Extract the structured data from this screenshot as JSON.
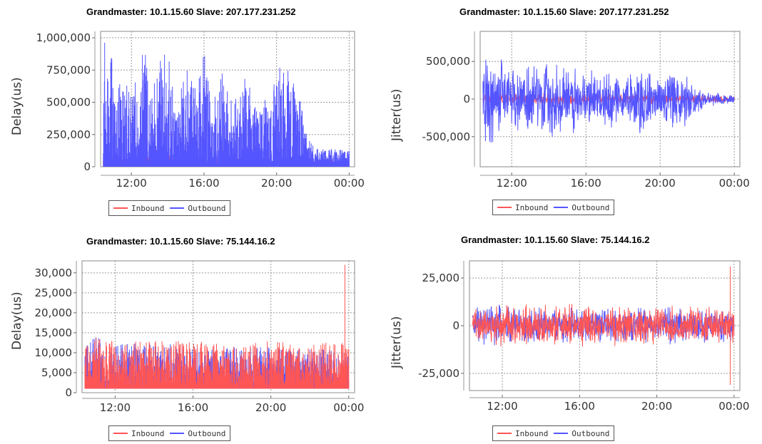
{
  "colors": {
    "inbound": "#ff5555",
    "outbound": "#5555ff",
    "grid": "#999999",
    "plot_border": "#888888"
  },
  "chart_data": [
    {
      "type": "line",
      "title": "Grandmaster: 10.1.15.60   Slave: 207.177.231.252",
      "ylabel": "Delay(us)",
      "xlabel": "",
      "x_ticks": [
        "12:00",
        "16:00",
        "20:00",
        "00:00"
      ],
      "x_tick_hours": [
        12,
        16,
        20,
        24
      ],
      "xlim_hours": [
        10.3,
        24.3
      ],
      "y_ticks": [
        0,
        250000,
        500000,
        750000,
        1000000
      ],
      "y_tick_labels": [
        "0",
        "250,000",
        "500,000",
        "750,000",
        "1,000,000"
      ],
      "ylim": [
        0,
        1050000
      ],
      "grid": true,
      "legend_position": "bottom",
      "series": [
        {
          "name": "Inbound",
          "color": "#ff5555",
          "envelope": [
            [
              10.4,
              40000
            ],
            [
              10.9,
              190000
            ],
            [
              11.0,
              40000
            ],
            [
              14.0,
              80000
            ],
            [
              16.0,
              60000
            ],
            [
              19.5,
              50000
            ],
            [
              20.0,
              30000
            ],
            [
              21.6,
              40000
            ],
            [
              24.0,
              40000
            ]
          ]
        },
        {
          "name": "Outbound",
          "color": "#5555ff",
          "envelope": [
            [
              10.4,
              900000
            ],
            [
              10.6,
              1000000
            ],
            [
              11.0,
              760000
            ],
            [
              11.5,
              700000
            ],
            [
              12.0,
              500000
            ],
            [
              12.7,
              920000
            ],
            [
              13.2,
              650000
            ],
            [
              13.8,
              920000
            ],
            [
              14.5,
              600000
            ],
            [
              15.0,
              750000
            ],
            [
              15.6,
              600000
            ],
            [
              16.1,
              1040000
            ],
            [
              16.5,
              500000
            ],
            [
              17.0,
              700000
            ],
            [
              17.6,
              460000
            ],
            [
              18.4,
              700000
            ],
            [
              19.0,
              380000
            ],
            [
              19.6,
              560000
            ],
            [
              20.0,
              700000
            ],
            [
              20.3,
              830000
            ],
            [
              20.7,
              690000
            ],
            [
              21.3,
              550000
            ],
            [
              21.7,
              180000
            ],
            [
              22.5,
              120000
            ],
            [
              23.3,
              110000
            ],
            [
              24.0,
              100000
            ]
          ]
        }
      ]
    },
    {
      "type": "line",
      "title": "Grandmaster: 10.1.15.60   Slave: 207.177.231.252",
      "ylabel": "Jitter(us)",
      "xlabel": "",
      "x_ticks": [
        "12:00",
        "16:00",
        "20:00",
        "00:00"
      ],
      "x_tick_hours": [
        12,
        16,
        20,
        24
      ],
      "xlim_hours": [
        10.3,
        24.3
      ],
      "y_ticks": [
        -500000,
        0,
        500000
      ],
      "y_tick_labels": [
        "-500,000",
        "0",
        "500,000"
      ],
      "ylim": [
        -900000,
        900000
      ],
      "grid": true,
      "legend_position": "bottom",
      "series": [
        {
          "name": "Inbound",
          "color": "#ff5555",
          "envelope": [
            [
              10.4,
              70000
            ],
            [
              14.0,
              90000
            ],
            [
              18.0,
              80000
            ],
            [
              22.0,
              60000
            ],
            [
              24.0,
              50000
            ]
          ]
        },
        {
          "name": "Outbound",
          "color": "#5555ff",
          "envelope": [
            [
              10.4,
              800000
            ],
            [
              10.8,
              700000
            ],
            [
              11.4,
              650000
            ],
            [
              12.0,
              400000
            ],
            [
              12.8,
              600000
            ],
            [
              13.6,
              500000
            ],
            [
              14.3,
              600000
            ],
            [
              15.0,
              500000
            ],
            [
              15.8,
              500000
            ],
            [
              16.5,
              380000
            ],
            [
              17.3,
              480000
            ],
            [
              18.0,
              350000
            ],
            [
              18.8,
              500000
            ],
            [
              19.6,
              420000
            ],
            [
              20.4,
              420000
            ],
            [
              21.2,
              480000
            ],
            [
              21.8,
              250000
            ],
            [
              22.5,
              120000
            ],
            [
              23.3,
              100000
            ],
            [
              24.0,
              80000
            ]
          ]
        }
      ]
    },
    {
      "type": "line",
      "title": "Grandmaster: 10.1.15.60   Slave: 75.144.16.2",
      "ylabel": "Delay(us)",
      "xlabel": "",
      "x_ticks": [
        "12:00",
        "16:00",
        "20:00",
        "00:00"
      ],
      "x_tick_hours": [
        12,
        16,
        20,
        24
      ],
      "xlim_hours": [
        10.3,
        24.3
      ],
      "y_ticks": [
        0,
        5000,
        10000,
        15000,
        20000,
        25000,
        30000
      ],
      "y_tick_labels": [
        "0",
        "5,000",
        "10,000",
        "15,000",
        "20,000",
        "25,000",
        "30,000"
      ],
      "ylim": [
        0,
        33000
      ],
      "grid": true,
      "legend_position": "bottom",
      "series": [
        {
          "name": "Outbound",
          "color": "#5555ff",
          "envelope": [
            [
              10.4,
              11000
            ],
            [
              11.0,
              13000
            ],
            [
              12.0,
              11000
            ],
            [
              13.5,
              12000
            ],
            [
              15.0,
              11000
            ],
            [
              17.0,
              10000
            ],
            [
              19.5,
              11000
            ],
            [
              21.0,
              10000
            ],
            [
              23.0,
              10000
            ],
            [
              24.0,
              9000
            ]
          ]
        },
        {
          "name": "Inbound",
          "color": "#ff5555",
          "spike": [
            23.8,
            32000
          ],
          "envelope": [
            [
              10.4,
              11000
            ],
            [
              11.0,
              13000
            ],
            [
              12.0,
              12000
            ],
            [
              14.0,
              12000
            ],
            [
              16.0,
              12000
            ],
            [
              18.0,
              11000
            ],
            [
              20.0,
              12000
            ],
            [
              22.0,
              11000
            ],
            [
              23.5,
              12000
            ],
            [
              24.0,
              11000
            ]
          ]
        }
      ]
    },
    {
      "type": "line",
      "title": "Grandmaster: 10.1.15.60   Slave: 75.144.16.2",
      "ylabel": "Jitter(us)",
      "xlabel": "",
      "x_ticks": [
        "12:00",
        "16:00",
        "20:00",
        "00:00"
      ],
      "x_tick_hours": [
        12,
        16,
        20,
        24
      ],
      "xlim_hours": [
        10.3,
        24.3
      ],
      "y_ticks": [
        -25000,
        0,
        25000
      ],
      "y_tick_labels": [
        "-25,000",
        "0",
        "25,000"
      ],
      "ylim": [
        -34000,
        34000
      ],
      "grid": true,
      "legend_position": "bottom",
      "series": [
        {
          "name": "Outbound",
          "color": "#5555ff",
          "envelope": [
            [
              10.4,
              11000
            ],
            [
              12.0,
              12000
            ],
            [
              14.0,
              11000
            ],
            [
              16.0,
              10000
            ],
            [
              18.0,
              10000
            ],
            [
              20.0,
              11000
            ],
            [
              22.0,
              10000
            ],
            [
              24.0,
              10000
            ]
          ]
        },
        {
          "name": "Inbound",
          "color": "#ff5555",
          "spike": [
            23.8,
            31000
          ],
          "envelope": [
            [
              10.4,
              10000
            ],
            [
              12.0,
              12000
            ],
            [
              14.0,
              12000
            ],
            [
              16.0,
              12000
            ],
            [
              18.0,
              11000
            ],
            [
              20.0,
              12000
            ],
            [
              22.0,
              11000
            ],
            [
              24.0,
              11000
            ]
          ]
        }
      ]
    }
  ]
}
